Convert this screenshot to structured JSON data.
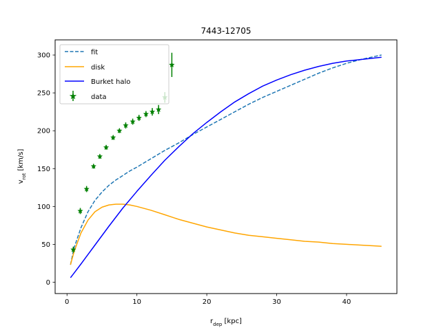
{
  "chart_data": {
    "type": "line",
    "title": "7443-12705",
    "xlabel": {
      "main": "r",
      "sub": "dep",
      "unit": " [kpc]"
    },
    "ylabel": {
      "main": "v",
      "sub": "rot",
      "unit": " [km/s]"
    },
    "xlim": [
      -1.7,
      47.2
    ],
    "ylim": [
      -15,
      320
    ],
    "xticks": [
      0,
      10,
      20,
      30,
      40
    ],
    "yticks": [
      0,
      50,
      100,
      150,
      200,
      250,
      300
    ],
    "grid": false,
    "legend": {
      "position": "top-left"
    },
    "series": [
      {
        "name": "fit",
        "style": "dashed",
        "color": "#1f77b4",
        "x": [
          0.5,
          1,
          2,
          3,
          4,
          5,
          6,
          7,
          8,
          9,
          10,
          12,
          14,
          16,
          18,
          20,
          22,
          24,
          26,
          28,
          30,
          32,
          34,
          36,
          38,
          40,
          42,
          44,
          45
        ],
        "y": [
          23,
          45,
          72,
          93,
          108,
          119,
          128,
          135,
          141,
          147,
          152,
          163,
          174,
          184,
          195,
          205,
          215,
          225,
          235,
          244,
          252,
          260,
          268,
          276,
          283,
          289,
          294,
          298,
          300
        ]
      },
      {
        "name": "disk",
        "style": "solid",
        "color": "#ffa500",
        "x": [
          0.5,
          1,
          2,
          3,
          4,
          5,
          6,
          7,
          8,
          9,
          10,
          12,
          14,
          16,
          18,
          20,
          22,
          24,
          26,
          28,
          30,
          32,
          34,
          36,
          38,
          40,
          42,
          44,
          45
        ],
        "y": [
          23,
          40,
          65,
          82,
          93,
          99,
          102,
          103,
          103,
          102,
          100,
          95,
          89,
          83,
          78,
          73,
          69,
          65,
          62,
          60,
          58,
          56,
          54,
          53,
          51,
          50,
          49,
          48,
          47.5
        ]
      },
      {
        "name": "Burket halo",
        "style": "solid",
        "color": "#0000ff",
        "x": [
          0.5,
          1,
          2,
          4,
          6,
          8,
          10,
          12,
          14,
          16,
          18,
          20,
          22,
          24,
          26,
          28,
          30,
          32,
          34,
          36,
          38,
          40,
          42,
          44,
          45
        ],
        "y": [
          6,
          12,
          24,
          49,
          74,
          98,
          120,
          141,
          161,
          179,
          196,
          211,
          225,
          238,
          249,
          259,
          267,
          274,
          280,
          285,
          289,
          292,
          294,
          296,
          297
        ]
      }
    ],
    "data": {
      "name": "data",
      "color": "#008000",
      "x": [
        0.9,
        1.9,
        2.8,
        3.8,
        4.7,
        5.6,
        6.6,
        7.5,
        8.4,
        9.4,
        10.3,
        11.3,
        12.2,
        13.1,
        14.0,
        15.0
      ],
      "y": [
        43,
        94,
        123,
        153,
        166,
        178,
        191,
        200,
        207,
        212,
        217,
        222,
        225,
        228,
        244,
        287
      ],
      "yerr": [
        4,
        4,
        4,
        3,
        3,
        3,
        3,
        3,
        4,
        4,
        4,
        4,
        5,
        6,
        7,
        16
      ]
    }
  }
}
